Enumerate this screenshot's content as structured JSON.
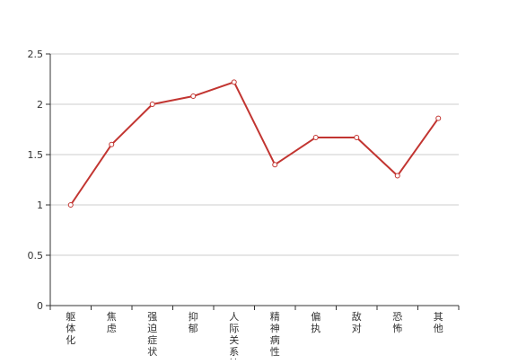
{
  "chart_data": {
    "type": "line",
    "categories": [
      "躯体化",
      "焦虑",
      "强迫症状",
      "抑郁",
      "人际关系敏感",
      "精神病性",
      "偏执",
      "敌对",
      "恐怖",
      "其他"
    ],
    "series": [
      {
        "values": [
          1.0,
          1.6,
          2.0,
          2.08,
          2.22,
          1.4,
          1.67,
          1.67,
          1.29,
          1.86
        ]
      }
    ],
    "y_ticks": [
      "0",
      "0.5",
      "1",
      "1.5",
      "2",
      "2.5"
    ],
    "ylim": [
      0,
      2.5
    ],
    "grid": true,
    "colors": {
      "line": "#c23531",
      "grid": "#cccccc",
      "axis": "#333333",
      "text": "#333333"
    }
  }
}
